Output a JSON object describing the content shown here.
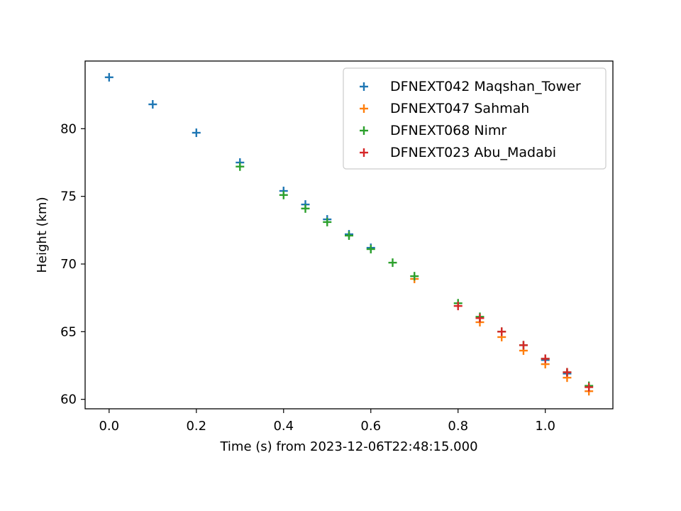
{
  "chart_data": {
    "type": "scatter",
    "title": "",
    "xlabel": "Time (s) from 2023-12-06T22:48:15.000",
    "ylabel": "Height (km)",
    "xlim": [
      -0.055,
      1.155
    ],
    "ylim": [
      59.3,
      85.0
    ],
    "xticks": [
      0.0,
      0.2,
      0.4,
      0.6,
      0.8,
      1.0
    ],
    "xtick_labels": [
      "0.0",
      "0.2",
      "0.4",
      "0.6",
      "0.8",
      "1.0"
    ],
    "yticks": [
      60,
      65,
      70,
      75,
      80
    ],
    "ytick_labels": [
      "60",
      "65",
      "70",
      "75",
      "80"
    ],
    "marker": "+",
    "grid": false,
    "legend_position": "top-right",
    "series": [
      {
        "name": "DFNEXT042 Maqshan_Tower",
        "color": "#1f77b4",
        "points": [
          [
            0.0,
            83.8
          ],
          [
            0.1,
            81.8
          ],
          [
            0.2,
            79.7
          ],
          [
            0.3,
            77.5
          ],
          [
            0.4,
            75.4
          ],
          [
            0.45,
            74.4
          ],
          [
            0.5,
            73.3
          ],
          [
            0.55,
            72.2
          ],
          [
            0.6,
            71.2
          ],
          [
            1.0,
            62.9
          ],
          [
            1.05,
            61.9
          ]
        ]
      },
      {
        "name": "DFNEXT047 Sahmah",
        "color": "#ff7f0e",
        "points": [
          [
            0.7,
            68.9
          ],
          [
            0.85,
            65.7
          ],
          [
            0.9,
            64.6
          ],
          [
            0.95,
            63.6
          ],
          [
            1.0,
            62.6
          ],
          [
            1.05,
            61.6
          ],
          [
            1.1,
            60.6
          ]
        ]
      },
      {
        "name": "DFNEXT068 Nimr",
        "color": "#2ca02c",
        "points": [
          [
            0.3,
            77.2
          ],
          [
            0.4,
            75.1
          ],
          [
            0.45,
            74.1
          ],
          [
            0.5,
            73.1
          ],
          [
            0.55,
            72.1
          ],
          [
            0.6,
            71.1
          ],
          [
            0.65,
            70.1
          ],
          [
            0.7,
            69.1
          ],
          [
            0.8,
            67.1
          ],
          [
            0.85,
            66.1
          ],
          [
            0.9,
            65.0
          ],
          [
            0.95,
            64.0
          ],
          [
            1.0,
            63.0
          ],
          [
            1.05,
            62.0
          ],
          [
            1.1,
            61.0
          ]
        ]
      },
      {
        "name": "DFNEXT023 Abu_Madabi",
        "color": "#d62728",
        "points": [
          [
            0.8,
            66.9
          ],
          [
            0.85,
            66.0
          ],
          [
            0.9,
            65.0
          ],
          [
            0.95,
            64.0
          ],
          [
            1.0,
            63.0
          ],
          [
            1.05,
            62.0
          ],
          [
            1.1,
            60.9
          ]
        ]
      }
    ]
  }
}
